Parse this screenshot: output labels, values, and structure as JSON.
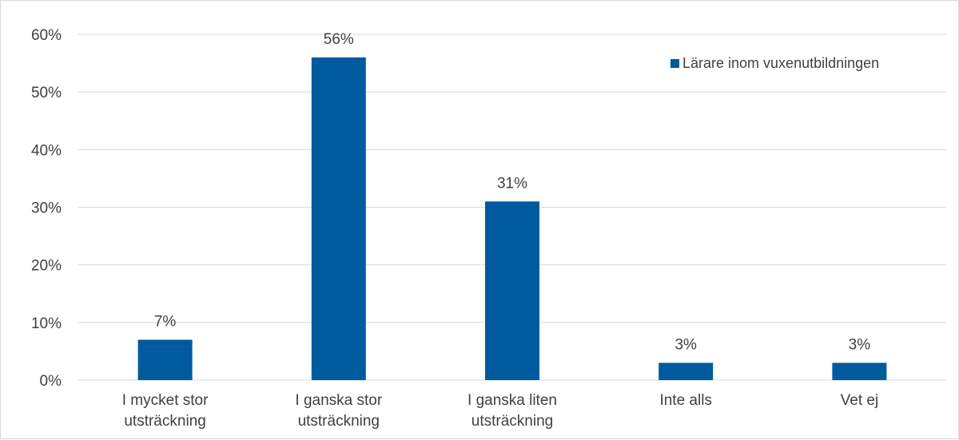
{
  "chart_data": {
    "type": "bar",
    "categories": [
      [
        "I mycket stor",
        "utsträckning"
      ],
      [
        "I ganska stor",
        "utsträckning"
      ],
      [
        "I ganska liten",
        "utsträckning"
      ],
      [
        "Inte alls"
      ],
      [
        "Vet ej"
      ]
    ],
    "series": [
      {
        "name": "Lärare inom vuxenutbildningen",
        "values": [
          7,
          56,
          31,
          3,
          3
        ],
        "data_labels": [
          "7%",
          "56%",
          "31%",
          "3%",
          "3%"
        ],
        "color": "#005a9e"
      }
    ],
    "y_ticks": [
      "0%",
      "10%",
      "20%",
      "30%",
      "40%",
      "50%",
      "60%"
    ],
    "ylim": [
      0,
      60
    ],
    "grid": true,
    "legend_position": "top-right",
    "colors": {
      "gridline": "#d9d9d9",
      "text": "#404040",
      "border": "#d9d9d9"
    }
  }
}
